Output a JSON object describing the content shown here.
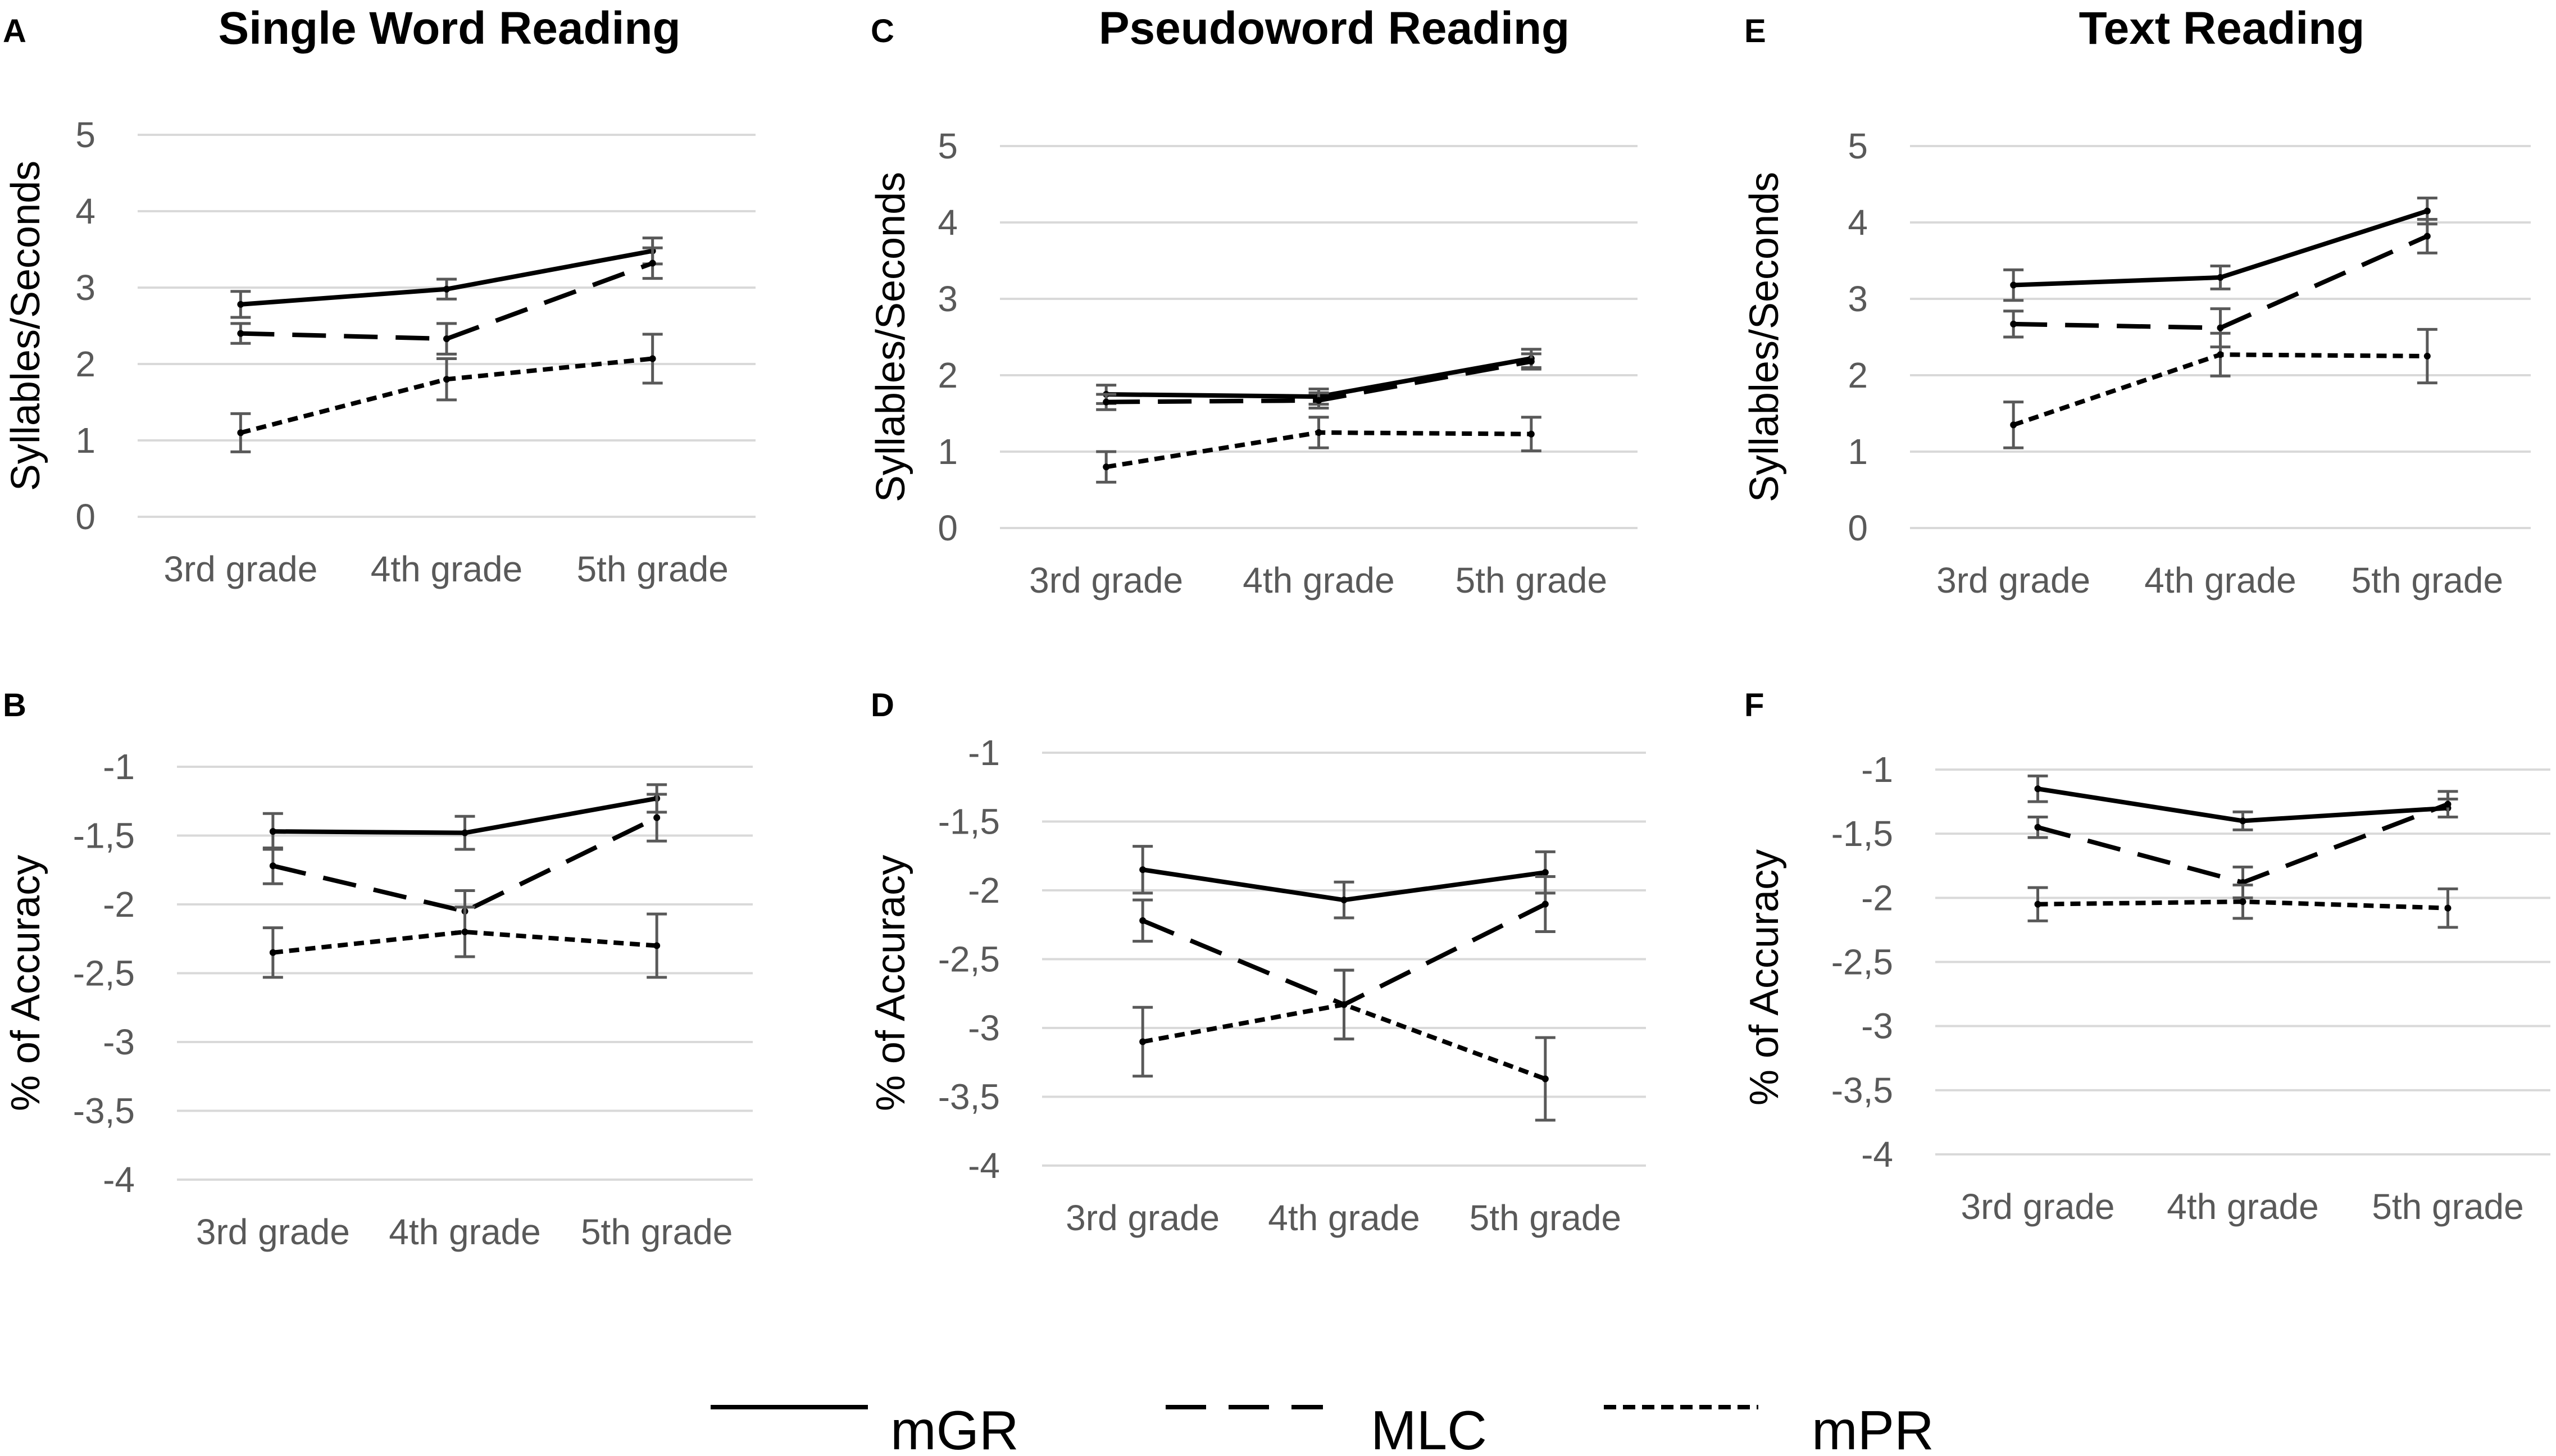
{
  "chart_data": [
    {
      "panel": "A",
      "title": "Single Word Reading",
      "type": "line",
      "ylabel": "Syllables/Seconds",
      "ylim": [
        0,
        5
      ],
      "yticks": [
        "0",
        "1",
        "2",
        "3",
        "4",
        "5"
      ],
      "categories": [
        "3rd grade",
        "4th grade",
        "5th grade"
      ],
      "series": [
        {
          "name": "mGR",
          "values": [
            2.78,
            2.98,
            3.48
          ],
          "errors": [
            0.17,
            0.13,
            0.17
          ]
        },
        {
          "name": "MLC",
          "values": [
            2.4,
            2.33,
            3.32
          ],
          "errors": [
            0.13,
            0.2,
            0.2
          ]
        },
        {
          "name": "mPR",
          "values": [
            1.1,
            1.8,
            2.07
          ],
          "errors": [
            0.25,
            0.27,
            0.32
          ]
        }
      ]
    },
    {
      "panel": "B",
      "title": "",
      "type": "line",
      "ylabel": "% of Accuracy",
      "ylim": [
        -4,
        -1
      ],
      "yticks": [
        "-4",
        "-3,5",
        "-3",
        "-2,5",
        "-2",
        "-1,5",
        "-1"
      ],
      "categories": [
        "3rd grade",
        "4th grade",
        "5th grade"
      ],
      "series": [
        {
          "name": "mGR",
          "values": [
            -1.47,
            -1.48,
            -1.23
          ],
          "errors": [
            0.13,
            0.12,
            0.1
          ]
        },
        {
          "name": "MLC",
          "values": [
            -1.72,
            -2.05,
            -1.37
          ],
          "errors": [
            0.13,
            0.15,
            0.17
          ]
        },
        {
          "name": "mPR",
          "values": [
            -2.35,
            -2.2,
            -2.3
          ],
          "errors": [
            0.18,
            0.18,
            0.23
          ]
        }
      ]
    },
    {
      "panel": "C",
      "title": "Pseudoword Reading",
      "type": "line",
      "ylabel": "Syllables/Seconds",
      "ylim": [
        0,
        5
      ],
      "yticks": [
        "0",
        "1",
        "2",
        "3",
        "4",
        "5"
      ],
      "categories": [
        "3rd grade",
        "4th grade",
        "5th grade"
      ],
      "series": [
        {
          "name": "mGR",
          "values": [
            1.75,
            1.72,
            2.22
          ],
          "errors": [
            0.12,
            0.1,
            0.12
          ]
        },
        {
          "name": "MLC",
          "values": [
            1.65,
            1.67,
            2.18
          ],
          "errors": [
            0.1,
            0.1,
            0.1
          ]
        },
        {
          "name": "mPR",
          "values": [
            0.8,
            1.25,
            1.23
          ],
          "errors": [
            0.2,
            0.2,
            0.22
          ]
        }
      ]
    },
    {
      "panel": "D",
      "title": "",
      "type": "line",
      "ylabel": "% of Accuracy",
      "ylim": [
        -4,
        -1
      ],
      "yticks": [
        "-4",
        "-3,5",
        "-3",
        "-2,5",
        "-2",
        "-1,5",
        "-1"
      ],
      "categories": [
        "3rd grade",
        "4th grade",
        "5th grade"
      ],
      "series": [
        {
          "name": "mGR",
          "values": [
            -1.85,
            -2.07,
            -1.87
          ],
          "errors": [
            0.17,
            0.13,
            0.15
          ]
        },
        {
          "name": "MLC",
          "values": [
            -2.22,
            -2.83,
            -2.1
          ],
          "errors": [
            0.15,
            0.25,
            0.2
          ]
        },
        {
          "name": "mPR",
          "values": [
            -3.1,
            -2.83,
            -3.37
          ],
          "errors": [
            0.25,
            0.25,
            0.3
          ]
        }
      ]
    },
    {
      "panel": "E",
      "title": "Text Reading",
      "type": "line",
      "ylabel": "Syllables/Seconds",
      "ylim": [
        0,
        5
      ],
      "yticks": [
        "0",
        "1",
        "2",
        "3",
        "4",
        "5"
      ],
      "categories": [
        "3rd grade",
        "4th grade",
        "5th grade"
      ],
      "series": [
        {
          "name": "mGR",
          "values": [
            3.18,
            3.28,
            4.15
          ],
          "errors": [
            0.2,
            0.15,
            0.17
          ]
        },
        {
          "name": "MLC",
          "values": [
            2.67,
            2.62,
            3.82
          ],
          "errors": [
            0.17,
            0.25,
            0.22
          ]
        },
        {
          "name": "mPR",
          "values": [
            1.35,
            2.27,
            2.25
          ],
          "errors": [
            0.3,
            0.28,
            0.35
          ]
        }
      ]
    },
    {
      "panel": "F",
      "title": "",
      "type": "line",
      "ylabel": "% of Accuracy",
      "ylim": [
        -4,
        -1
      ],
      "yticks": [
        "-4",
        "-3,5",
        "-3",
        "-2,5",
        "-2",
        "-1,5",
        "-1"
      ],
      "categories": [
        "3rd grade",
        "4th grade",
        "5th grade"
      ],
      "series": [
        {
          "name": "mGR",
          "values": [
            -1.15,
            -1.4,
            -1.3
          ],
          "errors": [
            0.1,
            0.07,
            0.07
          ]
        },
        {
          "name": "MLC",
          "values": [
            -1.45,
            -1.88,
            -1.27
          ],
          "errors": [
            0.08,
            0.12,
            0.1
          ]
        },
        {
          "name": "mPR",
          "values": [
            -2.05,
            -2.03,
            -2.08
          ],
          "errors": [
            0.13,
            0.13,
            0.15
          ]
        }
      ]
    }
  ],
  "legend": [
    {
      "name": "mGR",
      "style": "solid"
    },
    {
      "name": "MLC",
      "style": "long-dash"
    },
    {
      "name": "mPR",
      "style": "short-dash"
    }
  ],
  "colors": {
    "line": "#000000",
    "error_bar": "#595959",
    "grid": "#d9d9d9",
    "tick_text": "#595959"
  }
}
